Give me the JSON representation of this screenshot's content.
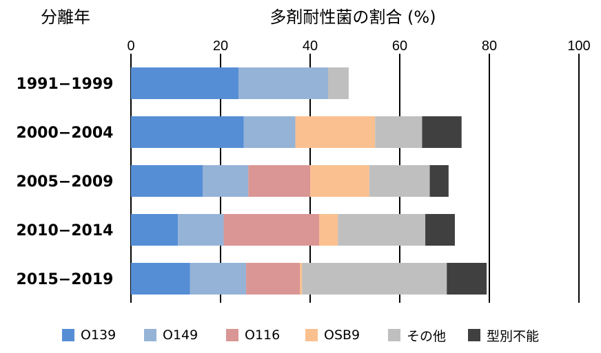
{
  "chart_data": {
    "type": "bar",
    "orientation": "horizontal",
    "stacked": true,
    "title": "多剤耐性菌の割合 (%)",
    "ylabel": "分離年",
    "xlim": [
      0,
      100
    ],
    "xticks": [
      0,
      20,
      40,
      60,
      80,
      100
    ],
    "grid": true,
    "legend_position": "bottom",
    "categories": [
      "1991−1999",
      "2000−2004",
      "2005−2009",
      "2010−2014",
      "2015−2019"
    ],
    "series": [
      {
        "name": "O139",
        "color": "#558ed5",
        "values": [
          24,
          25.2,
          16,
          10.5,
          13.2
        ]
      },
      {
        "name": "O149",
        "color": "#95b3d7",
        "values": [
          20,
          11.5,
          10.2,
          10.2,
          12.5
        ]
      },
      {
        "name": "O116",
        "color": "#d99694",
        "values": [
          0,
          0,
          13.8,
          21.3,
          12
        ]
      },
      {
        "name": "OSB9",
        "color": "#fac090",
        "values": [
          0,
          17.8,
          13.2,
          4.2,
          0.5
        ]
      },
      {
        "name": "その他",
        "color": "#bfbfbf",
        "values": [
          4.6,
          10.5,
          13.5,
          19.5,
          32.3
        ]
      },
      {
        "name": "型別不能",
        "color": "#404040",
        "values": [
          0,
          8.8,
          4.2,
          6.6,
          8.9
        ]
      }
    ]
  }
}
